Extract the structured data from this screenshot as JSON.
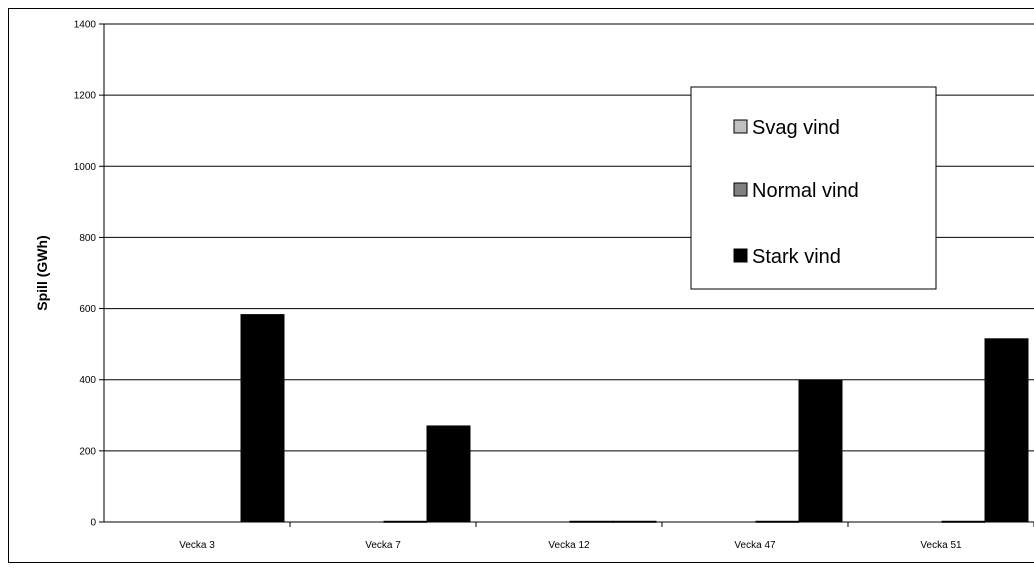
{
  "chart_data": {
    "type": "bar",
    "title": "",
    "xlabel": "",
    "ylabel": "Spill (GWh)",
    "ylim": [
      0,
      1400
    ],
    "yticks": [
      0,
      200,
      400,
      600,
      800,
      1000,
      1200,
      1400
    ],
    "grid": true,
    "legend_position": "top-right",
    "categories": [
      "Vecka 3",
      "Vecka 7",
      "Vecka 12",
      "Vecka 47",
      "Vecka 51"
    ],
    "series": [
      {
        "name": "Svag vind",
        "color": "#c0c0c0",
        "values": [
          0,
          0,
          0,
          0,
          0
        ]
      },
      {
        "name": "Normal vind",
        "color": "#808080",
        "values": [
          0,
          2,
          2,
          2,
          2
        ]
      },
      {
        "name": "Stark vind",
        "color": "#000000",
        "values": [
          583,
          270,
          2,
          398,
          515
        ]
      }
    ]
  }
}
